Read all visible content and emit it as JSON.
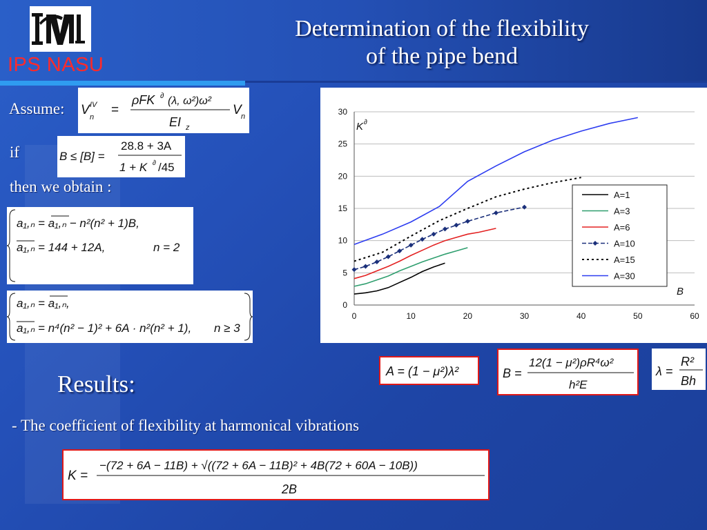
{
  "header": {
    "org": "IPS NASU",
    "title_line1": "Determination of the flexibility",
    "title_line2": "of the pipe bend"
  },
  "body": {
    "assume_label": "Assume:",
    "if_label": "if",
    "then_label": "then we obtain :",
    "results_heading": "Results:",
    "results_text": "- The coefficient of flexibility at harmonical vibrations"
  },
  "equations": {
    "assume": {
      "lhs": "V",
      "lhs_sup": "IV",
      "lhs_sub": "n",
      "num": "ρFK",
      "num_sup": "∂",
      "num_rest": "(λ, ω²)ω²",
      "den": "EI",
      "den_sub": "z",
      "rhs": "V",
      "rhs_sub": "n"
    },
    "if_cond": {
      "lhs": "B ≤ [B] =",
      "num": "28.8 + 3A",
      "den_a": "1 + K",
      "den_sup": "∂",
      "den_b": "/45"
    },
    "sys1_eq1": "a₁,ₙ = a₁,ₙ − n²(n² + 1)B,",
    "sys1_eq2": "a₁,ₙ = 144 + 12A,",
    "sys1_cond": "n = 2",
    "sys2_eq1": "a₁,ₙ = a₁,ₙ,",
    "sys2_eq2": "a₁,ₙ = n⁴(n² − 1)² + 6A · n²(n² + 1),",
    "sys2_cond": "n ≥ 3",
    "A_def": {
      "lhs": "A = (1 − μ²)λ²"
    },
    "B_def": {
      "lhs": "B =",
      "num": "12(1 − μ²)ρR⁴ω²",
      "den": "h²E"
    },
    "lambda_def": {
      "lhs": "λ =",
      "num": "R²",
      "den": "Bh"
    },
    "K_def": {
      "lhs": "K =",
      "num": "−(72 + 6A − 11B) + √((72 + 6A − 11B)² + 4B(72 + 60A − 10B))",
      "den": "2B"
    }
  },
  "chart_data": {
    "type": "line",
    "xlabel": "B",
    "ylabel": "K",
    "ylabel_sup": "∂",
    "xlim": [
      0,
      60
    ],
    "ylim": [
      0,
      30
    ],
    "xticks": [
      0,
      10,
      20,
      30,
      40,
      50,
      60
    ],
    "yticks": [
      0,
      5,
      10,
      15,
      20,
      25,
      30
    ],
    "grid": "horizontal",
    "legend": "right",
    "series": [
      {
        "name": "A=1",
        "color": "#000000",
        "style": "solid",
        "x": [
          0,
          2,
          4,
          6,
          8,
          10,
          12,
          14,
          16
        ],
        "y": [
          1.7,
          1.9,
          2.2,
          2.7,
          3.5,
          4.3,
          5.2,
          5.9,
          6.5
        ]
      },
      {
        "name": "A=3",
        "color": "#2e9e6e",
        "style": "solid",
        "x": [
          0,
          2,
          4,
          6,
          8,
          10,
          12,
          14,
          16,
          18,
          20
        ],
        "y": [
          2.9,
          3.3,
          3.9,
          4.5,
          5.3,
          6.0,
          6.7,
          7.3,
          7.9,
          8.4,
          8.9
        ]
      },
      {
        "name": "A=6",
        "color": "#e32020",
        "style": "solid",
        "x": [
          0,
          2,
          4,
          6,
          8,
          10,
          12,
          14,
          16,
          18,
          20,
          22,
          25
        ],
        "y": [
          4.1,
          4.6,
          5.3,
          6.0,
          6.8,
          7.7,
          8.5,
          9.3,
          10.0,
          10.5,
          11.0,
          11.3,
          11.9
        ]
      },
      {
        "name": "A=10",
        "color": "#1a2f7a",
        "style": "dashed-marker",
        "x": [
          0,
          2,
          4,
          6,
          8,
          10,
          12,
          14,
          16,
          18,
          20,
          25,
          30
        ],
        "y": [
          5.5,
          6.0,
          6.7,
          7.5,
          8.4,
          9.3,
          10.2,
          11.0,
          11.8,
          12.4,
          13.0,
          14.3,
          15.2
        ]
      },
      {
        "name": "A=15",
        "color": "#000000",
        "style": "dotted",
        "x": [
          0,
          5,
          10,
          15,
          20,
          25,
          30,
          35,
          40
        ],
        "y": [
          6.8,
          8.2,
          10.7,
          13.1,
          15.0,
          16.8,
          18.0,
          19.0,
          19.8
        ]
      },
      {
        "name": "A=30",
        "color": "#2c3cf0",
        "style": "solid",
        "x": [
          0,
          5,
          10,
          15,
          20,
          25,
          30,
          35,
          40,
          45,
          50
        ],
        "y": [
          9.4,
          11.0,
          12.9,
          15.3,
          19.2,
          21.6,
          23.8,
          25.6,
          27.0,
          28.2,
          29.1
        ]
      }
    ]
  }
}
